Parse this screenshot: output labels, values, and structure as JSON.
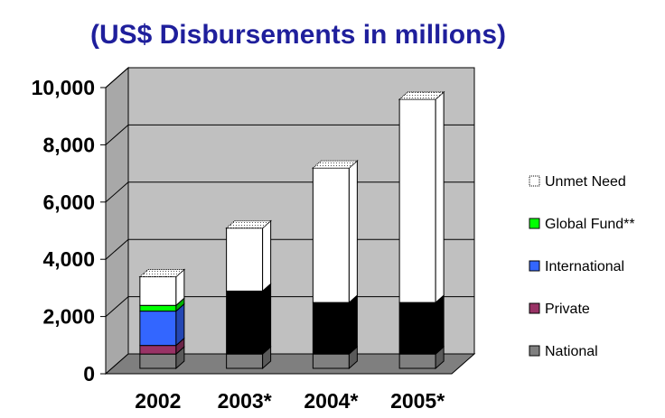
{
  "chart_data": {
    "type": "bar",
    "stacked": true,
    "three_d": true,
    "title": "(US$ Disbursements in millions)",
    "categories": [
      "2002",
      "2003*",
      "2004*",
      "2005*"
    ],
    "ylim": [
      0,
      10000
    ],
    "yticks": [
      "0",
      "2,000",
      "4,000",
      "6,000",
      "8,000",
      "10,000"
    ],
    "ytick_values": [
      0,
      2000,
      4000,
      6000,
      8000,
      10000
    ],
    "grid": true,
    "legend_position": "right",
    "series": [
      {
        "name": "National",
        "color": "#808080",
        "values": [
          500,
          500,
          500,
          500
        ]
      },
      {
        "name": "Private",
        "color": "#993366",
        "values": [
          300,
          0,
          0,
          0
        ]
      },
      {
        "name": "International",
        "color": "#3366ff",
        "values": [
          1200,
          0,
          0,
          0
        ]
      },
      {
        "name": "Global Fund**",
        "color": "#00ff00",
        "values": [
          200,
          0,
          0,
          0
        ]
      },
      {
        "name": "",
        "color": "#000000",
        "values": [
          0,
          2200,
          1800,
          1800
        ]
      },
      {
        "name": "Unmet Need",
        "color": "#ffffff",
        "values": [
          1000,
          2200,
          4700,
          7100
        ]
      }
    ]
  }
}
